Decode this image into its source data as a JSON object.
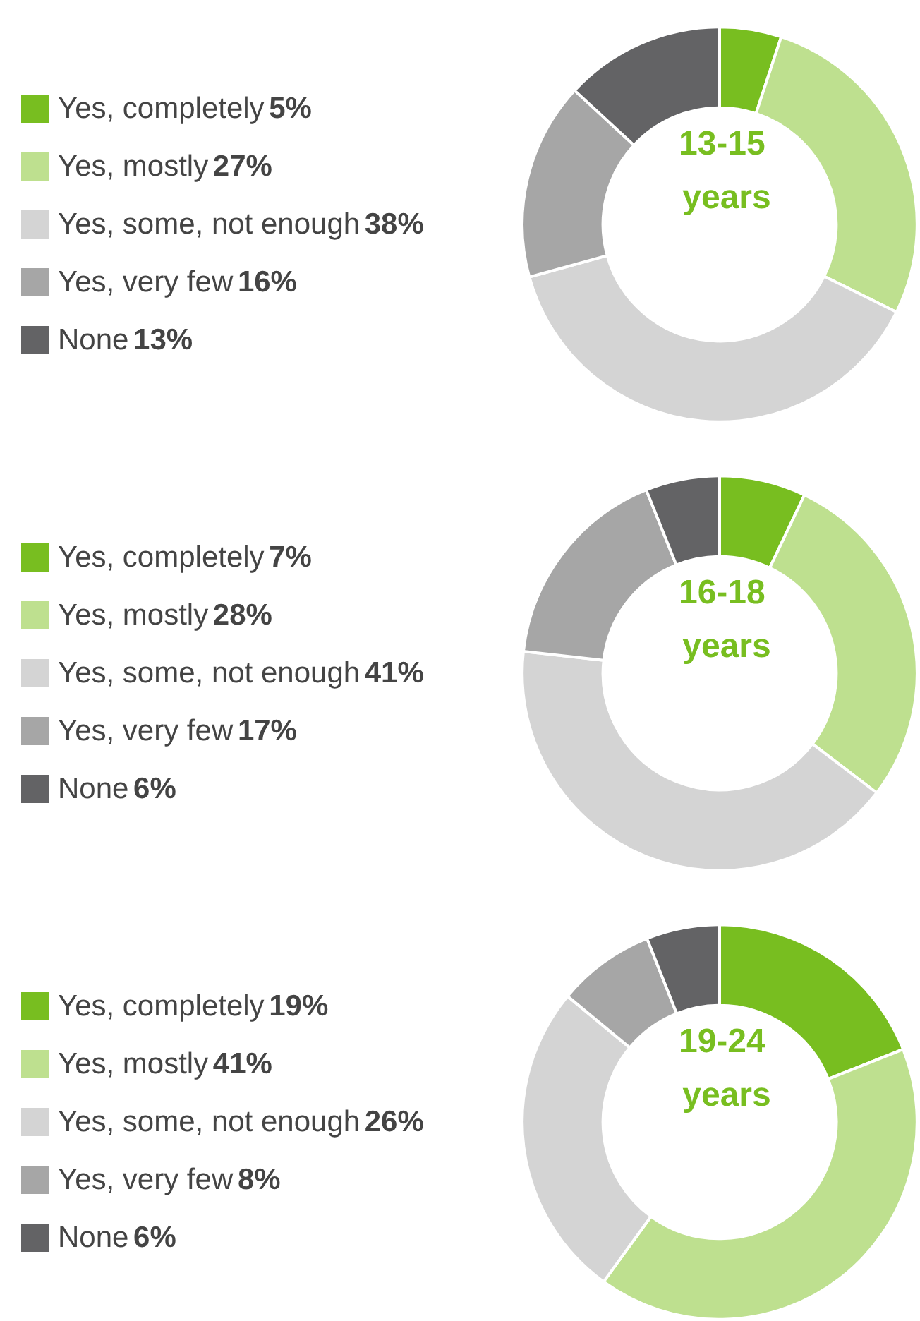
{
  "chart_data": [
    {
      "type": "donut",
      "title": "13-15 years",
      "categories": [
        "Yes, completely",
        "Yes, mostly",
        "Yes, some, not enough",
        "Yes, very few",
        "None"
      ],
      "values": [
        5,
        27,
        38,
        16,
        13
      ],
      "value_labels": [
        "5%",
        "27%",
        "38%",
        "16%",
        "13%"
      ],
      "colors": [
        "#78be20",
        "#bee08f",
        "#d4d4d4",
        "#a6a6a6",
        "#636365"
      ],
      "legend": "left"
    },
    {
      "type": "donut",
      "title": "16-18 years",
      "categories": [
        "Yes, completely",
        "Yes, mostly",
        "Yes, some, not enough",
        "Yes, very few",
        "None"
      ],
      "values": [
        7,
        28,
        41,
        17,
        6
      ],
      "value_labels": [
        "7%",
        "28%",
        "41%",
        "17%",
        "6%"
      ],
      "colors": [
        "#78be20",
        "#bee08f",
        "#d4d4d4",
        "#a6a6a6",
        "#636365"
      ],
      "legend": "left"
    },
    {
      "type": "donut",
      "title": "19-24 years",
      "categories": [
        "Yes, completely",
        "Yes, mostly",
        "Yes, some, not enough",
        "Yes, very few",
        "None"
      ],
      "values": [
        19,
        41,
        26,
        8,
        6
      ],
      "value_labels": [
        "19%",
        "41%",
        "26%",
        "8%",
        "6%"
      ],
      "colors": [
        "#78be20",
        "#bee08f",
        "#d4d4d4",
        "#a6a6a6",
        "#636365"
      ],
      "legend": "left"
    }
  ]
}
